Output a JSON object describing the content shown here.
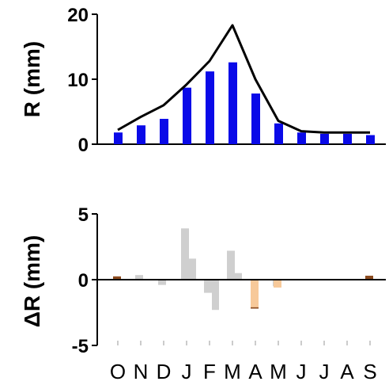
{
  "chart_data": [
    {
      "type": "bar",
      "categories": [
        "O",
        "N",
        "D",
        "J",
        "F",
        "M",
        "A",
        "M",
        "J",
        "J",
        "A",
        "S"
      ],
      "ylabel": "R (mm)",
      "ylim": [
        0,
        20
      ],
      "yticks": [
        "0",
        "10",
        "20"
      ],
      "series": [
        {
          "kind": "bar",
          "color": "#0a0ae8",
          "values": [
            1.8,
            2.9,
            3.9,
            8.7,
            11.2,
            12.6,
            7.8,
            3.2,
            1.8,
            1.6,
            1.6,
            1.4
          ]
        },
        {
          "kind": "line",
          "color": "#000000",
          "values": [
            2.2,
            4.2,
            6.0,
            9.2,
            12.8,
            18.3,
            10.0,
            3.6,
            2.0,
            1.8,
            1.8,
            1.8
          ]
        }
      ]
    },
    {
      "type": "bar",
      "categories": [
        "O",
        "N",
        "D",
        "J",
        "F",
        "M",
        "A",
        "M",
        "J",
        "J",
        "A",
        "S"
      ],
      "ylabel": "ΔR (mm)",
      "ylim": [
        -5,
        5
      ],
      "yticks": [
        "5",
        "0",
        "-5"
      ],
      "series": [
        {
          "color": "#8b4a1e",
          "values": [
            0.25,
            0,
            0,
            0,
            0,
            0,
            -2.2,
            0,
            0,
            0,
            0,
            0.3
          ]
        },
        {
          "color": "#cfcfcf",
          "values": [
            0,
            0.35,
            -0.4,
            3.9,
            -1.0,
            2.2,
            0,
            -0.5,
            0,
            0,
            0,
            0
          ]
        },
        {
          "color": "#cfcfcf",
          "values": [
            0,
            0,
            0,
            1.6,
            -2.3,
            0.5,
            0,
            0,
            0,
            0,
            0,
            0
          ]
        },
        {
          "color": "#f7c99a",
          "values": [
            0,
            0,
            0,
            0,
            0,
            0,
            -2.1,
            -0.6,
            0,
            0,
            0,
            0
          ]
        }
      ]
    }
  ]
}
